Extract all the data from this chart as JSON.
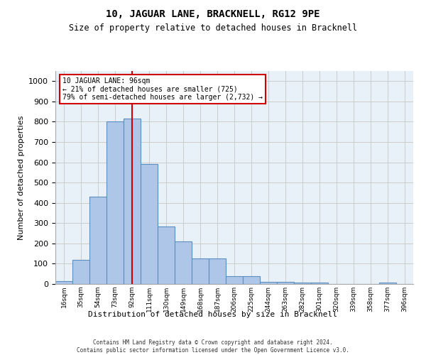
{
  "title": "10, JAGUAR LANE, BRACKNELL, RG12 9PE",
  "subtitle": "Size of property relative to detached houses in Bracknell",
  "xlabel": "Distribution of detached houses by size in Bracknell",
  "ylabel": "Number of detached properties",
  "footer_line1": "Contains HM Land Registry data © Crown copyright and database right 2024.",
  "footer_line2": "Contains public sector information licensed under the Open Government Licence v3.0.",
  "bin_labels": [
    "16sqm",
    "35sqm",
    "54sqm",
    "73sqm",
    "92sqm",
    "111sqm",
    "130sqm",
    "149sqm",
    "168sqm",
    "187sqm",
    "206sqm",
    "225sqm",
    "244sqm",
    "263sqm",
    "282sqm",
    "301sqm",
    "320sqm",
    "339sqm",
    "358sqm",
    "377sqm",
    "396sqm"
  ],
  "bar_values": [
    15,
    120,
    430,
    800,
    815,
    590,
    285,
    210,
    125,
    125,
    40,
    40,
    12,
    10,
    8,
    6,
    0,
    0,
    0,
    8,
    0
  ],
  "bar_color": "#aec6e8",
  "bar_edge_color": "#5a8fc0",
  "grid_color": "#cccccc",
  "bg_color": "#e8f0f8",
  "vline_x": 4,
  "vline_color": "#cc0000",
  "annotation_text": "10 JAGUAR LANE: 96sqm\n← 21% of detached houses are smaller (725)\n79% of semi-detached houses are larger (2,732) →",
  "annotation_box_color": "#cc0000",
  "ylim": [
    0,
    1050
  ],
  "yticks": [
    0,
    100,
    200,
    300,
    400,
    500,
    600,
    700,
    800,
    900,
    1000
  ]
}
